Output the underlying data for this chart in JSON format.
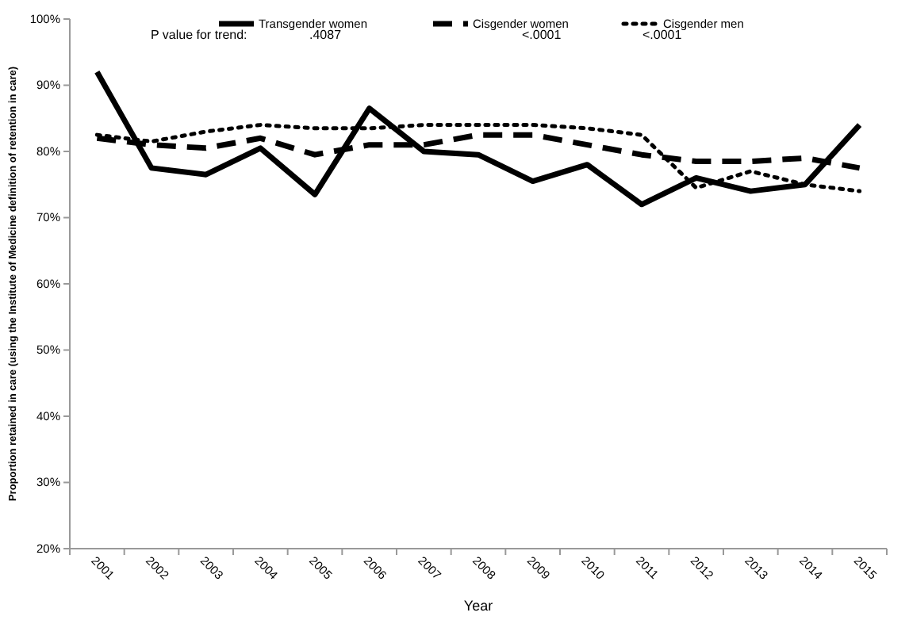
{
  "chart_data": {
    "type": "line",
    "xlabel": "Year",
    "ylabel": "Proportion retained in care (using the Institute of Medicine definition of retention in care)",
    "categories": [
      "2001",
      "2002",
      "2003",
      "2004",
      "2005",
      "2006",
      "2007",
      "2008",
      "2009",
      "2010",
      "2011",
      "2012",
      "2013",
      "2014",
      "2015"
    ],
    "ylim": [
      20,
      100
    ],
    "yticks": [
      {
        "value": 20,
        "label": "20%"
      },
      {
        "value": 30,
        "label": "30%"
      },
      {
        "value": 40,
        "label": "40%"
      },
      {
        "value": 50,
        "label": "50%"
      },
      {
        "value": 60,
        "label": "60%"
      },
      {
        "value": 70,
        "label": "70%"
      },
      {
        "value": 80,
        "label": "80%"
      },
      {
        "value": 90,
        "label": "90%"
      },
      {
        "value": 100,
        "label": "100%"
      }
    ],
    "legend": "top",
    "grid": false,
    "annotations": [
      "P value for trend:",
      ".4087",
      "<.0001",
      "<.0001"
    ],
    "series": [
      {
        "name": "Transgender women",
        "color": "#000000",
        "line_style": "solid",
        "values": [
          92,
          77.5,
          76.5,
          80.5,
          73.5,
          86.5,
          80,
          79.5,
          75.5,
          78,
          72,
          76,
          74,
          75,
          84
        ]
      },
      {
        "name": "Cisgender women",
        "color": "#000000",
        "line_style": "dashed",
        "values": [
          82,
          81,
          80.5,
          82,
          79.5,
          81,
          81,
          82.5,
          82.5,
          81,
          79.5,
          78.5,
          78.5,
          79,
          77.5
        ]
      },
      {
        "name": "Cisgender men",
        "color": "#000000",
        "line_style": "dotted",
        "values": [
          82.5,
          81.5,
          83,
          84,
          83.5,
          83.5,
          84,
          84,
          84,
          83.5,
          82.5,
          74.5,
          77,
          75,
          74
        ]
      }
    ]
  }
}
